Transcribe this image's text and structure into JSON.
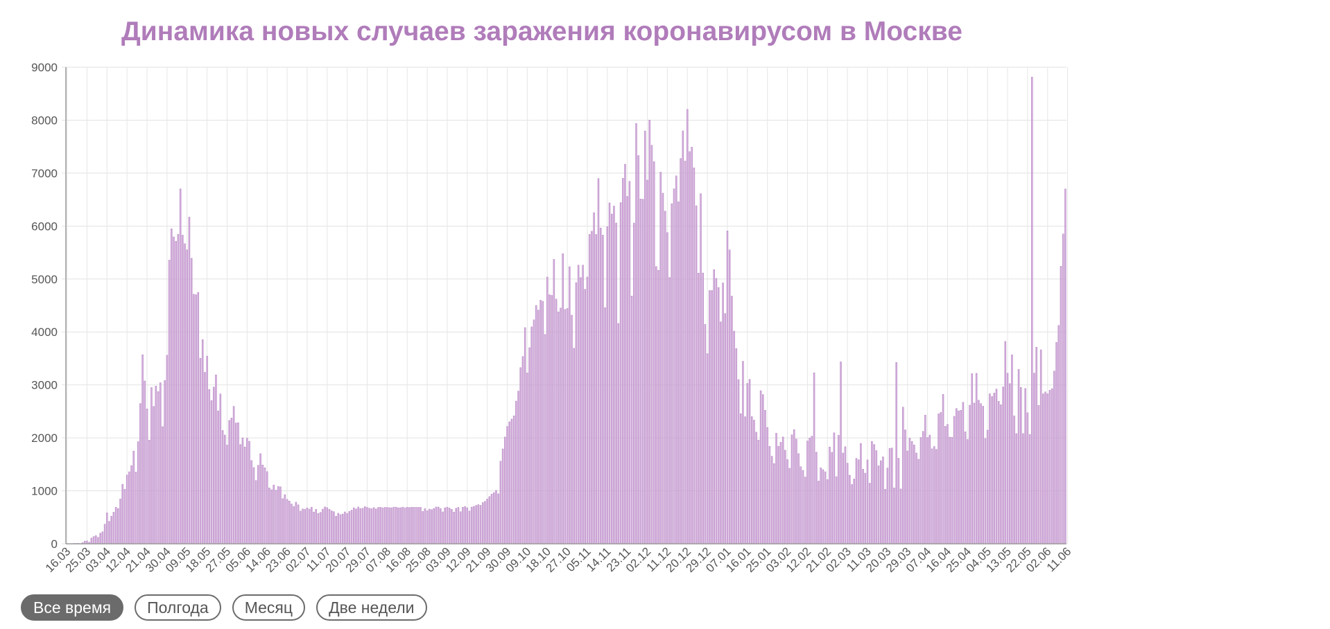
{
  "chart_data": {
    "type": "bar",
    "title": "Динамика новых случаев заражения коронавирусом в Москве",
    "xlabel": "",
    "ylabel": "",
    "ylim": [
      0,
      9000
    ],
    "y_ticks": [
      "0",
      "1000",
      "2000",
      "3000",
      "4000",
      "5000",
      "6000",
      "7000",
      "8000",
      "9000"
    ],
    "x_tick_labels": [
      "16.03",
      "25.03",
      "03.04",
      "12.04",
      "21.04",
      "30.04",
      "09.05",
      "18.05",
      "27.05",
      "05.06",
      "14.06",
      "23.06",
      "02.07",
      "11.07",
      "20.07",
      "29.07",
      "07.08",
      "16.08",
      "25.08",
      "03.09",
      "12.09",
      "21.09",
      "30.09",
      "09.10",
      "18.10",
      "27.10",
      "05.11",
      "14.11",
      "23.11",
      "02.12",
      "11.12",
      "20.12",
      "29.12",
      "07.01",
      "16.01",
      "25.01",
      "03.02",
      "12.02",
      "21.02",
      "02.03",
      "11.03",
      "20.03",
      "29.03",
      "07.04",
      "16.04",
      "25.04",
      "04.05",
      "13.05",
      "22.05",
      "02.06",
      "11.06"
    ],
    "grid": true,
    "legend": "none",
    "bar_color": "#d4b0dd",
    "bar_edge_color": "#b27fbf",
    "values": [
      1,
      1,
      1,
      7,
      8,
      10,
      5,
      21,
      51,
      54,
      29,
      108,
      137,
      155,
      122,
      200,
      227,
      369,
      583,
      424,
      521,
      596,
      690,
      666,
      847,
      1124,
      1030,
      1300,
      1360,
      1477,
      1751,
      1355,
      1929,
      2649,
      3570,
      3075,
      2548,
      1959,
      2950,
      2594,
      2978,
      2875,
      3042,
      2212,
      3083,
      3561,
      5358,
      5948,
      5795,
      5714,
      5846,
      6703,
      5829,
      5667,
      5551,
      6169,
      5392,
      4712,
      4703,
      4748,
      3505,
      3855,
      3238,
      3545,
      2913,
      2706,
      2960,
      3190,
      2510,
      2830,
      2140,
      2054,
      1865,
      2330,
      2375,
      2595,
      2281,
      2286,
      1875,
      2001,
      1829,
      1994,
      1936,
      1572,
      1440,
      1195,
      1483,
      1702,
      1489,
      1436,
      1363,
      1055,
      1020,
      1111,
      1013,
      1083,
      1075,
      852,
      928,
      839,
      808,
      751,
      705,
      786,
      736,
      617,
      658,
      651,
      678,
      655,
      692,
      600,
      650,
      574,
      593,
      654,
      696,
      682,
      652,
      622,
      606,
      521,
      577,
      551,
      562,
      602,
      574,
      613,
      635,
      680,
      658,
      694,
      665,
      671,
      702,
      687,
      671,
      663,
      683,
      658,
      687,
      689,
      679,
      688,
      687,
      681,
      680,
      693,
      692,
      679,
      681,
      693,
      680,
      690,
      686,
      691,
      689,
      690,
      688,
      689,
      611,
      663,
      625,
      655,
      646,
      667,
      695,
      694,
      666,
      602,
      680,
      691,
      675,
      651,
      599,
      670,
      688,
      606,
      690,
      703,
      680,
      620,
      693,
      707,
      724,
      740,
      726,
      779,
      803,
      845,
      891,
      939,
      967,
      1009,
      944,
      1560,
      1792,
      2016,
      2216,
      2304,
      2355,
      2416,
      2695,
      2884,
      3327,
      3537,
      4082,
      3226,
      3703,
      4096,
      4229,
      4501,
      4413,
      4600,
      4580,
      3955,
      5037,
      4703,
      4691,
      5371,
      4620,
      4381,
      4451,
      5478,
      4425,
      4444,
      5233,
      4317,
      3692,
      4932,
      5262,
      5027,
      5262,
      4806,
      5038,
      5843,
      5902,
      6253,
      5841,
      6897,
      5964,
      5829,
      4460,
      5987,
      6438,
      6227,
      6377,
      6058,
      4161,
      6443,
      6902,
      7168,
      6559,
      6845,
      4680,
      6057,
      7938,
      7331,
      6511,
      6507,
      7795,
      6868,
      8003,
      7527,
      7215,
      5236,
      5166,
      7019,
      6621,
      6281,
      5877,
      5029,
      6422,
      6703,
      6948,
      6459,
      7276,
      7797,
      7228,
      8203,
      7406,
      7490,
      7100,
      6383,
      5112,
      6611,
      5114,
      4145,
      3590,
      4783,
      4784,
      5176,
      5012,
      4840,
      4191,
      4926,
      4348,
      5909,
      5550,
      4677,
      4016,
      3688,
      3101,
      2457,
      3446,
      2400,
      3028,
      3105,
      2401,
      2335,
      2108,
      1960,
      2891,
      2818,
      2521,
      2197,
      1840,
      1654,
      1515,
      2088,
      1843,
      1917,
      2017,
      1768,
      1590,
      1426,
      2059,
      2156,
      1979,
      1703,
      1456,
      1387,
      1262,
      1941,
      1998,
      2033,
      3229,
      1731,
      1185,
      1435,
      1401,
      1361,
      1213,
      1828,
      1727,
      2096,
      1268,
      2049,
      3436,
      1714,
      1834,
      1522,
      1295,
      1120,
      1225,
      1614,
      1587,
      1896,
      1409,
      1334,
      1584,
      1145,
      1933,
      1876,
      1760,
      1473,
      1569,
      1641,
      1029,
      1430,
      1803,
      1809,
      1055,
      3424,
      1616,
      1036,
      2580,
      2151,
      1753,
      1996,
      1933,
      1867,
      1715,
      1597,
      2008,
      2123,
      2430,
      2007,
      2053,
      1794,
      1838,
      1784,
      2454,
      2480,
      2822,
      2218,
      2255,
      2015,
      2010,
      2407,
      2555,
      2510,
      2522,
      2672,
      2115,
      1969,
      2617,
      3213,
      2658,
      3219,
      2711,
      2648,
      2598,
      1988,
      2146,
      2832,
      2781,
      2847,
      2922,
      2691,
      2625,
      2963,
      3822,
      3221,
      3024,
      3569,
      2415,
      2081,
      3294,
      2953,
      2082,
      2933,
      2474,
      2065,
      8813,
      3223,
      3713,
      2614,
      3663,
      2832,
      2869,
      2833,
      2901,
      2929,
      3263,
      3803,
      4124,
      5241,
      5850,
      6701
    ]
  },
  "controls": {
    "range_buttons": [
      {
        "label": "Все время",
        "active": true
      },
      {
        "label": "Полгода",
        "active": false
      },
      {
        "label": "Месяц",
        "active": false
      },
      {
        "label": "Две недели",
        "active": false
      }
    ]
  }
}
